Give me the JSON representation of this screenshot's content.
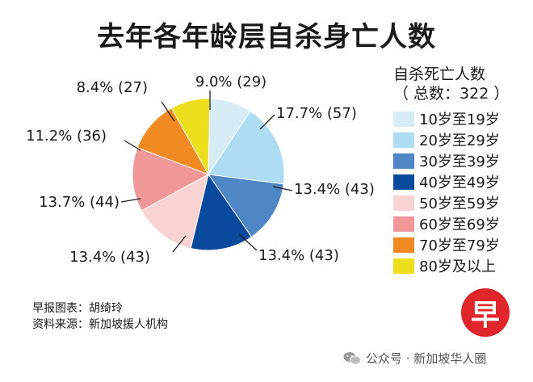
{
  "chart_data": {
    "type": "pie",
    "title": "去年各年龄层自杀身亡人数",
    "legend_title": "自杀死亡人数",
    "legend_subtitle": "（ 总数：322 ）",
    "total": 322,
    "legend_placement": "right",
    "slices": [
      {
        "name": "10岁至19岁",
        "value": 29,
        "percent": 9.0,
        "label": "9.0% (29)",
        "color": "#d6edf8"
      },
      {
        "name": "20岁至29岁",
        "value": 57,
        "percent": 17.7,
        "label": "17.7% (57)",
        "color": "#aedcf3"
      },
      {
        "name": "30岁至39岁",
        "value": 43,
        "percent": 13.4,
        "label": "13.4% (43)",
        "color": "#4f86c6"
      },
      {
        "name": "40岁至49岁",
        "value": 43,
        "percent": 13.4,
        "label": "13.4% (43)",
        "color": "#0a4a9c"
      },
      {
        "name": "50岁至59岁",
        "value": 43,
        "percent": 13.4,
        "label": "13.4% (43)",
        "color": "#f8d3d1"
      },
      {
        "name": "60岁至69岁",
        "value": 44,
        "percent": 13.7,
        "label": "13.7% (44)",
        "color": "#f09899"
      },
      {
        "name": "70岁至79岁",
        "value": 36,
        "percent": 11.2,
        "label": "11.2% (36)",
        "color": "#f18a22"
      },
      {
        "name": "80岁及以上",
        "value": 27,
        "percent": 8.4,
        "label": "8.4% (27)",
        "color": "#eddf1d"
      }
    ]
  },
  "credits": {
    "chart_by": "早报图表：胡绮玲",
    "source": "资料来源：新加坡援人机构"
  },
  "logo": {
    "glyph": "早",
    "color": "#e0252b"
  },
  "footer": {
    "text": "公众号 · 新加坡华人圈",
    "icon": "wechat-icon"
  }
}
